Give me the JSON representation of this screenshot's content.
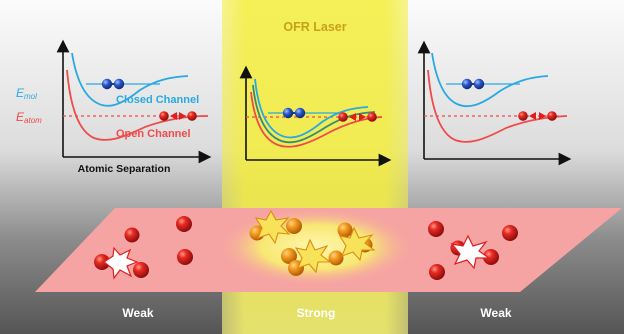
{
  "laser_label": "OFR Laser",
  "energy_labels": {
    "mol_main": "E",
    "mol_sub": "mol",
    "atom_main": "E",
    "atom_sub": "atom"
  },
  "channel_labels": {
    "closed": "Closed Channel",
    "open": "Open Channel"
  },
  "x_axis_label": "Atomic Separation",
  "interaction_labels": {
    "left": "Weak",
    "center": "Strong",
    "right": "Weak"
  },
  "colors": {
    "closed_channel": "#29a9e1",
    "open_channel": "#ee4b4b",
    "laser_beam": "#f4ee3a",
    "atom": "#e11d1d",
    "molecule": "#2a55c8",
    "plane": "#f6a3a3",
    "laser_atom": "#f09a18",
    "text_light": "#ffffff",
    "laser_text": "#c6a21a"
  }
}
